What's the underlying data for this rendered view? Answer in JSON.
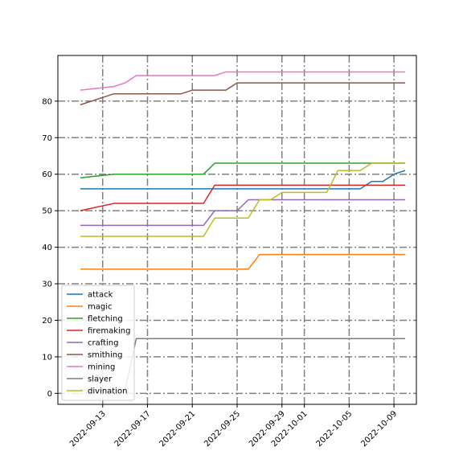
{
  "chart_data": {
    "type": "line",
    "xlabel": "",
    "ylabel": "",
    "grid": true,
    "legend_position": "lower-left",
    "x_range": [
      "2022-09-09",
      "2022-10-11"
    ],
    "y_range": [
      -3,
      92.5
    ],
    "y_ticks": [
      0,
      10,
      20,
      30,
      40,
      50,
      60,
      70,
      80
    ],
    "x_ticks": [
      "2022-09-13",
      "2022-09-17",
      "2022-09-21",
      "2022-09-25",
      "2022-09-29",
      "2022-10-01",
      "2022-10-05",
      "2022-10-09"
    ],
    "series": [
      {
        "name": "attack",
        "color": "#1f77b4",
        "points": [
          [
            "2022-09-11",
            56
          ],
          [
            "2022-10-06",
            56
          ],
          [
            "2022-10-07",
            58
          ],
          [
            "2022-10-08",
            58
          ],
          [
            "2022-10-09",
            60
          ],
          [
            "2022-10-10",
            61
          ]
        ]
      },
      {
        "name": "magic",
        "color": "#ff7f0e",
        "points": [
          [
            "2022-09-11",
            34
          ],
          [
            "2022-09-26",
            34
          ],
          [
            "2022-09-27",
            38
          ],
          [
            "2022-10-10",
            38
          ]
        ]
      },
      {
        "name": "fletching",
        "color": "#2ca02c",
        "points": [
          [
            "2022-09-11",
            59
          ],
          [
            "2022-09-14",
            60
          ],
          [
            "2022-09-22",
            60
          ],
          [
            "2022-09-23",
            63
          ],
          [
            "2022-10-10",
            63
          ]
        ]
      },
      {
        "name": "firemaking",
        "color": "#d62728",
        "points": [
          [
            "2022-09-11",
            50
          ],
          [
            "2022-09-14",
            52
          ],
          [
            "2022-09-22",
            52
          ],
          [
            "2022-09-23",
            57
          ],
          [
            "2022-10-10",
            57
          ]
        ]
      },
      {
        "name": "crafting",
        "color": "#9467bd",
        "points": [
          [
            "2022-09-11",
            46
          ],
          [
            "2022-09-22",
            46
          ],
          [
            "2022-09-23",
            50
          ],
          [
            "2022-09-25",
            50
          ],
          [
            "2022-09-26",
            53
          ],
          [
            "2022-10-10",
            53
          ]
        ]
      },
      {
        "name": "smithing",
        "color": "#8c564b",
        "points": [
          [
            "2022-09-11",
            79
          ],
          [
            "2022-09-14",
            82
          ],
          [
            "2022-09-20",
            82
          ],
          [
            "2022-09-21",
            83
          ],
          [
            "2022-09-24",
            83
          ],
          [
            "2022-09-25",
            85
          ],
          [
            "2022-10-10",
            85
          ]
        ]
      },
      {
        "name": "mining",
        "color": "#e377c2",
        "points": [
          [
            "2022-09-11",
            83
          ],
          [
            "2022-09-14",
            84
          ],
          [
            "2022-09-15",
            85
          ],
          [
            "2022-09-16",
            87
          ],
          [
            "2022-09-23",
            87
          ],
          [
            "2022-09-24",
            88
          ],
          [
            "2022-10-10",
            88
          ]
        ]
      },
      {
        "name": "slayer",
        "color": "#7f7f7f",
        "points": [
          [
            "2022-09-11",
            1
          ],
          [
            "2022-09-15",
            1
          ],
          [
            "2022-09-16",
            15
          ],
          [
            "2022-10-10",
            15
          ]
        ]
      },
      {
        "name": "divination",
        "color": "#bcbd22",
        "points": [
          [
            "2022-09-11",
            43
          ],
          [
            "2022-09-22",
            43
          ],
          [
            "2022-09-23",
            48
          ],
          [
            "2022-09-26",
            48
          ],
          [
            "2022-09-27",
            53
          ],
          [
            "2022-09-28",
            53
          ],
          [
            "2022-09-29",
            55
          ],
          [
            "2022-10-03",
            55
          ],
          [
            "2022-10-04",
            61
          ],
          [
            "2022-10-06",
            61
          ],
          [
            "2022-10-07",
            63
          ],
          [
            "2022-10-10",
            63
          ]
        ]
      }
    ]
  }
}
